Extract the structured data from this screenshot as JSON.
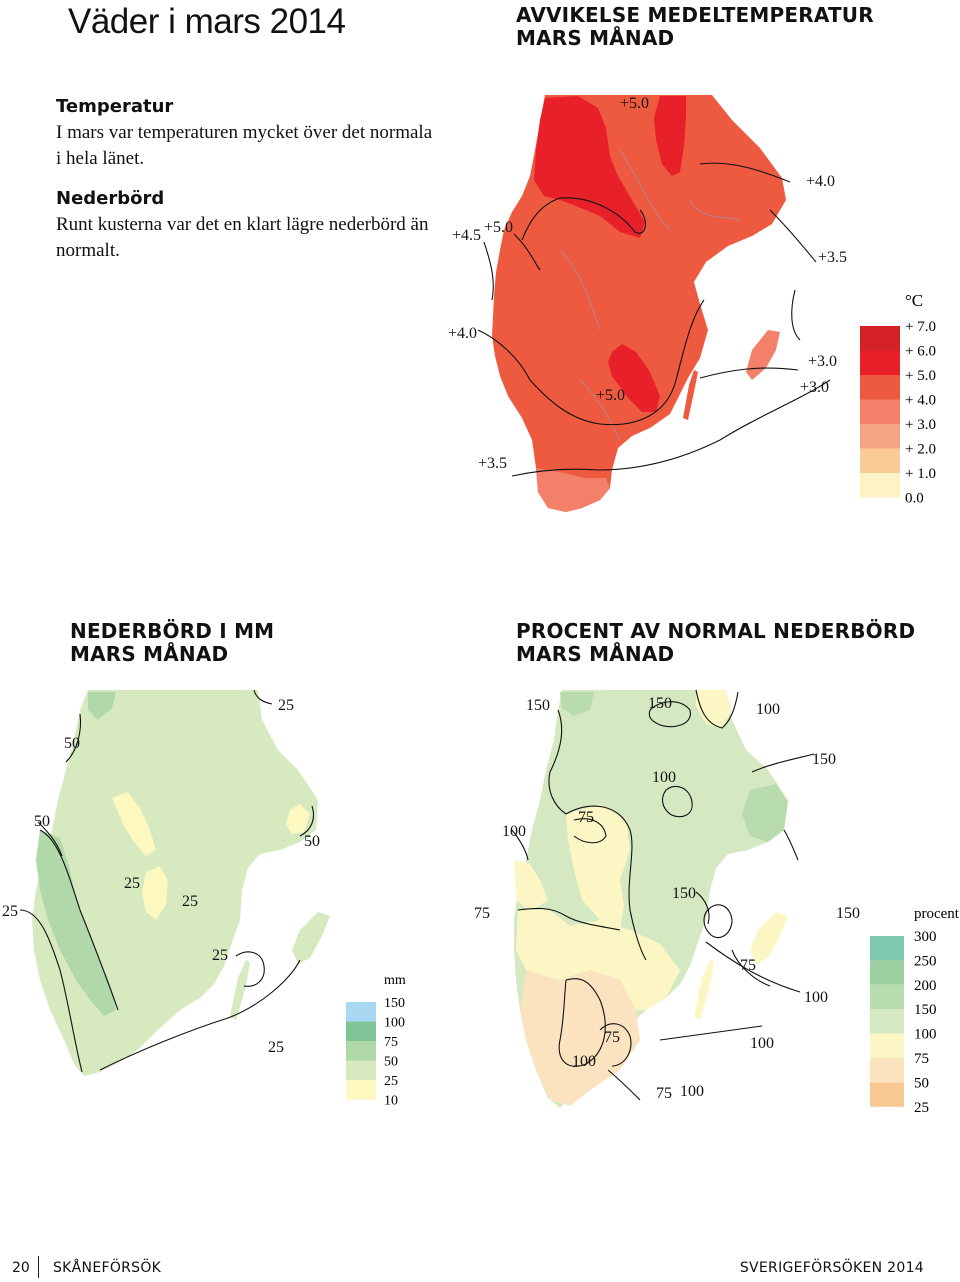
{
  "header": {
    "page_title": "Väder i mars 2014"
  },
  "intro": {
    "temperature_heading": "Temperatur",
    "temperature_text": "I mars var temperaturen mycket över det normala i hela länet.",
    "precipitation_heading": "Nederbörd",
    "precipitation_text": "Runt kusterna var det en klart lägre nederbörd än normalt."
  },
  "temperature_map": {
    "title_line1": "AVVIKELSE MEDELTEMPERATUR",
    "title_line2": "MARS MÅNAD",
    "isoline_labels": [
      "+5.0",
      "+4.5",
      "+5.0",
      "+4.0",
      "+3.5",
      "+4.0",
      "+3.0",
      "+3.0",
      "+5.0",
      "+3.5"
    ],
    "legend": {
      "unit": "°C",
      "labels": [
        "+ 7.0",
        "+ 6.0",
        "+ 5.0",
        "+ 4.0",
        "+ 3.0",
        "+ 2.0",
        "+ 1.0",
        "0.0"
      ],
      "colors": [
        "#d42027",
        "#e8202a",
        "#ee5a3f",
        "#f2806a",
        "#f5a585",
        "#fbcb96",
        "#fef3c6"
      ]
    }
  },
  "precip_map": {
    "title_line1": "NEDERBÖRD I MM",
    "title_line2": "MARS MÅNAD",
    "isoline_labels": [
      "25",
      "50",
      "50",
      "50",
      "25",
      "25",
      "25",
      "25",
      "25"
    ],
    "legend": {
      "unit": "mm",
      "labels": [
        "150",
        "100",
        "75",
        "50",
        "25",
        "10"
      ],
      "colors": [
        "#a8d8f2",
        "#7fc496",
        "#b1d8a9",
        "#d6e9bf",
        "#fdf7c0"
      ]
    }
  },
  "percent_map": {
    "title_line1": "PROCENT AV NORMAL NEDERBÖRD",
    "title_line2": "MARS MÅNAD",
    "isoline_labels": [
      "150",
      "150",
      "100",
      "150",
      "100",
      "75",
      "100",
      "150",
      "75",
      "150",
      "75",
      "100",
      "75",
      "100",
      "100",
      "75",
      "100"
    ],
    "legend": {
      "unit": "procent",
      "labels": [
        "300",
        "250",
        "200",
        "150",
        "100",
        "75",
        "50",
        "25"
      ],
      "colors": [
        "#7ec8b0",
        "#9dd0a0",
        "#b9dcae",
        "#d4e8c2",
        "#fbf6c4",
        "#fbe3c0",
        "#f8c892"
      ]
    }
  },
  "footer": {
    "page_number": "20",
    "left_text": "SKÅNEFÖRSÖK",
    "right_text": "SVERIGEFÖRSÖKEN 2014"
  }
}
